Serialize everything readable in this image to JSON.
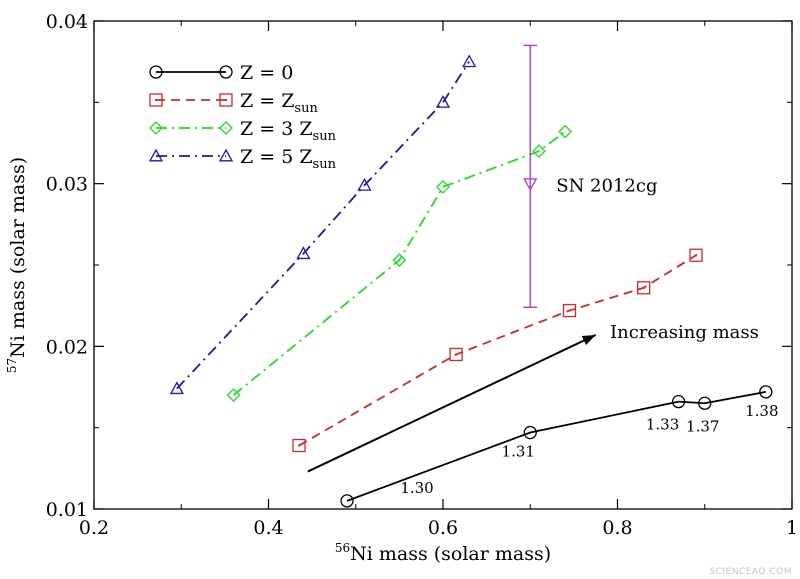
{
  "chart_data": {
    "type": "line",
    "xlabel": {
      "sup": "56",
      "text": "Ni mass (solar mass)"
    },
    "ylabel": {
      "sup": "57",
      "text": "Ni mass (solar mass)"
    },
    "xlim": [
      0.2,
      1.0
    ],
    "ylim": [
      0.01,
      0.04
    ],
    "x_ticks": [
      "0.2",
      "0.4",
      "0.6",
      "0.8",
      "1"
    ],
    "y_ticks": [
      "0.01",
      "0.02",
      "0.03",
      "0.04"
    ],
    "grid": false,
    "legend_position": "top-left",
    "series": [
      {
        "name": "Z = 0",
        "legend": {
          "main": "Z = 0",
          "sub": ""
        },
        "color": "#000000",
        "dash": "solid",
        "marker": "circle",
        "x": [
          0.49,
          0.7,
          0.87,
          0.9,
          0.97
        ],
        "y": [
          0.0105,
          0.0147,
          0.0166,
          0.0165,
          0.0172
        ],
        "point_labels": [
          "1.30",
          "1.31",
          "1.33",
          "1.37",
          "1.38"
        ]
      },
      {
        "name": "Z = Z_sun",
        "legend": {
          "main": "Z = Z",
          "sub": "sun"
        },
        "color": "#d62728",
        "dash": "dashed",
        "marker": "square",
        "x": [
          0.435,
          0.615,
          0.745,
          0.83,
          0.89
        ],
        "y": [
          0.0139,
          0.0195,
          0.0222,
          0.0236,
          0.0256
        ]
      },
      {
        "name": "Z = 3 Z_sun",
        "legend": {
          "main": "Z = 3 Z",
          "sub": "sun"
        },
        "color": "#22dd22",
        "dash": "dashdot",
        "marker": "diamond",
        "x": [
          0.36,
          0.55,
          0.6,
          0.71,
          0.74
        ],
        "y": [
          0.017,
          0.0253,
          0.0298,
          0.032,
          0.0332
        ]
      },
      {
        "name": "Z = 5 Z_sun",
        "legend": {
          "main": "Z = 5 Z",
          "sub": "sun"
        },
        "color": "#1a1aaa",
        "dash": "dashdot",
        "marker": "triangle",
        "x": [
          0.295,
          0.44,
          0.51,
          0.6,
          0.63
        ],
        "y": [
          0.0174,
          0.0257,
          0.0299,
          0.035,
          0.0375
        ]
      }
    ],
    "observation": {
      "label": "SN 2012cg",
      "color": "#b03cc8",
      "x": 0.7,
      "y": 0.03,
      "y_low": 0.0224,
      "y_high": 0.0385
    },
    "annotation": {
      "text": "Increasing mass",
      "arrow_from": [
        0.445,
        0.0123
      ],
      "arrow_to": [
        0.775,
        0.0207
      ]
    }
  },
  "watermark": "SCIENCEAQ.COM"
}
